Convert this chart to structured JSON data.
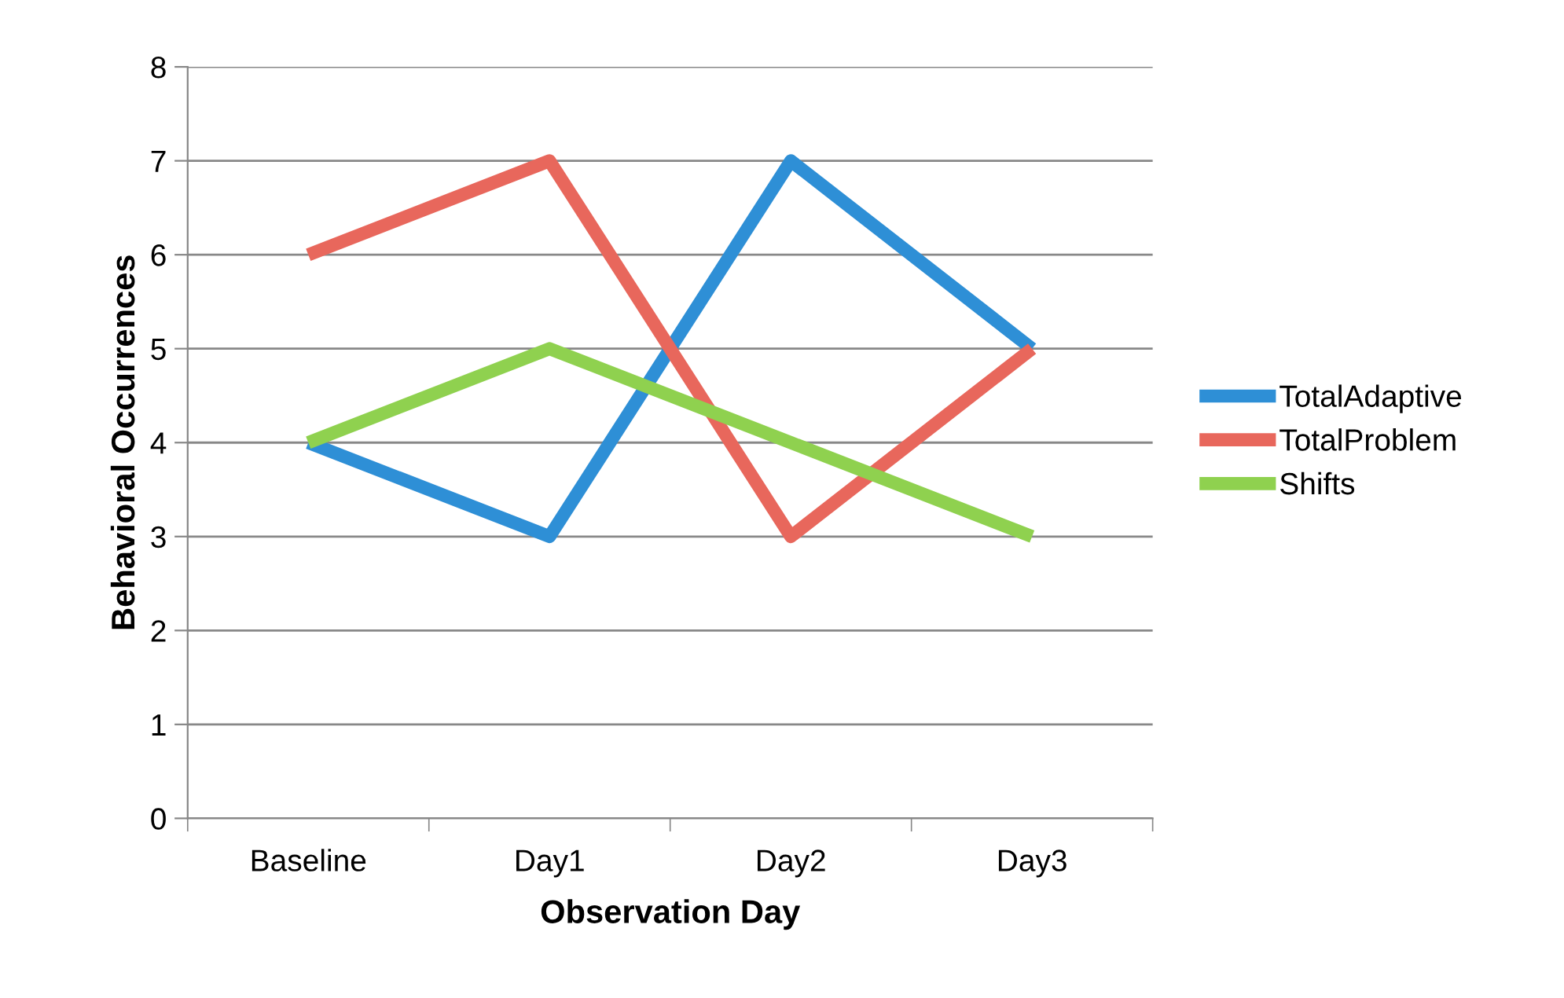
{
  "chart_data": {
    "type": "line",
    "xlabel": "Observation Day",
    "ylabel": "Behavioral Occurrences",
    "categories": [
      "Baseline",
      "Day1",
      "Day2",
      "Day3"
    ],
    "series": [
      {
        "name": "TotalAdaptive",
        "color": "#2e8fd6",
        "values": [
          4,
          3,
          7,
          5
        ]
      },
      {
        "name": "TotalProblem",
        "color": "#e8675c",
        "values": [
          6,
          7,
          3,
          5
        ]
      },
      {
        "name": "Shifts",
        "color": "#8fd14f",
        "values": [
          4,
          5,
          4,
          3
        ]
      }
    ],
    "ylim": [
      0,
      8
    ],
    "yticks": [
      0,
      1,
      2,
      3,
      4,
      5,
      6,
      7,
      8
    ],
    "grid": "y",
    "legend": "right",
    "marker": "none",
    "line_style": "solid"
  }
}
